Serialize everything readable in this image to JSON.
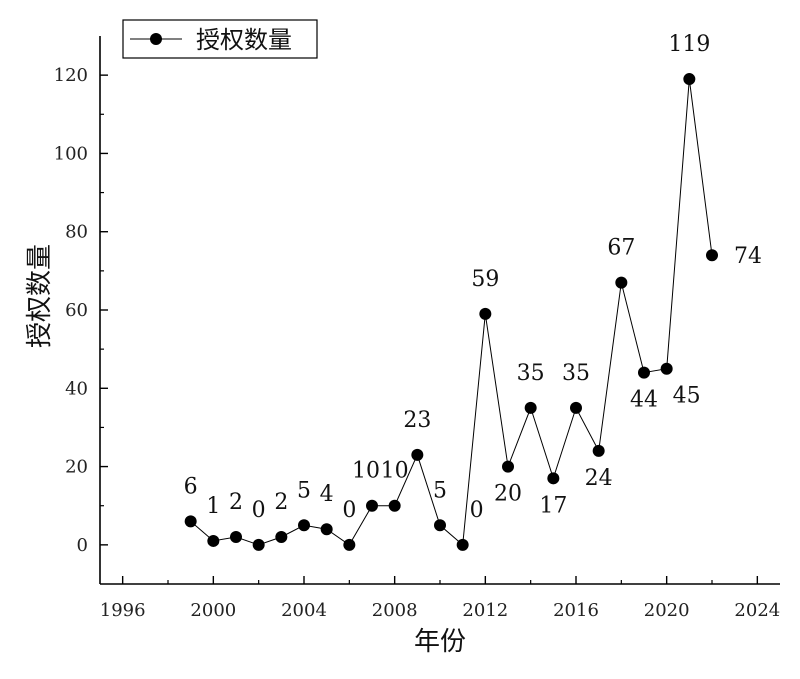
{
  "chart_data": {
    "type": "line",
    "title": "",
    "xlabel": "年份",
    "ylabel": "授权数量",
    "xlim": [
      1995,
      2025
    ],
    "ylim": [
      -10,
      130
    ],
    "xticks": [
      1996,
      2000,
      2004,
      2008,
      2012,
      2016,
      2020,
      2024
    ],
    "yticks": [
      0,
      20,
      40,
      60,
      80,
      100,
      120
    ],
    "grid": false,
    "legend": {
      "position": "top-left",
      "entries": [
        "授权数量"
      ]
    },
    "series": [
      {
        "name": "授权数量",
        "color": "#000000",
        "x": [
          1999,
          2000,
          2001,
          2002,
          2003,
          2004,
          2005,
          2006,
          2007,
          2008,
          2009,
          2010,
          2011,
          2012,
          2013,
          2014,
          2015,
          2016,
          2017,
          2018,
          2019,
          2020,
          2021,
          2022
        ],
        "y": [
          6,
          1,
          2,
          0,
          2,
          5,
          4,
          0,
          10,
          10,
          23,
          5,
          0,
          59,
          20,
          35,
          17,
          35,
          24,
          67,
          44,
          45,
          119,
          74
        ],
        "labels": [
          "6",
          "1",
          "2",
          "0",
          "2",
          "5",
          "4",
          "0",
          "10",
          "10",
          "23",
          "5",
          "0",
          "59",
          "20",
          "35",
          "17",
          "35",
          "24",
          "67",
          "44",
          "45",
          "119",
          "74"
        ]
      }
    ]
  }
}
